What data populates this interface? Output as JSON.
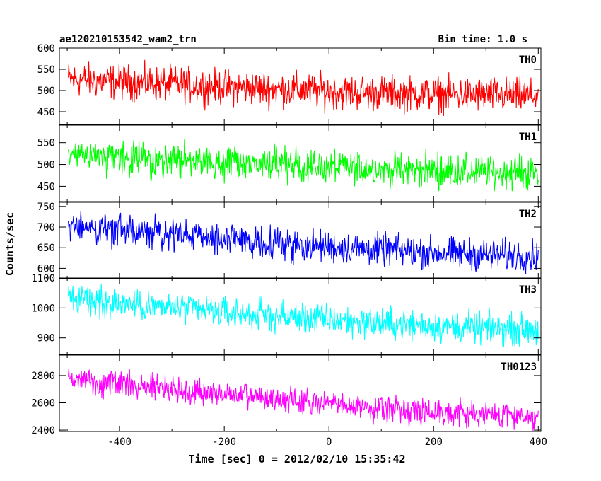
{
  "header": {
    "title": "ae120210153542_wam2_trn",
    "bin_time": "Bin time: 1.0 s"
  },
  "chart_data": {
    "type": "line",
    "title": "ae120210153542_wam2_trn",
    "subtitle": "Bin time: 1.0 s",
    "xlabel": "Time [sec] 0 = 2012/02/10 15:35:42",
    "ylabel": "Counts/sec",
    "xlim": [
      -515,
      405
    ],
    "xticks": [
      -400,
      -200,
      0,
      200,
      400
    ],
    "xtick_labels": [
      "-400",
      "-200",
      "0",
      "200",
      "400"
    ],
    "bin_time_s": 1.0,
    "panels": [
      {
        "name": "TH0",
        "color": "#ff0000",
        "ylim": [
          420,
          600
        ],
        "yticks": [
          450,
          500,
          550,
          600
        ],
        "ytick_labels": [
          "450",
          "500",
          "550",
          "600"
        ],
        "x": [
          -500,
          -400,
          -300,
          -200,
          -100,
          0,
          100,
          200,
          300,
          400
        ],
        "y": [
          527,
          520,
          515,
          508,
          503,
          498,
          494,
          491,
          490,
          487
        ],
        "noise": 30
      },
      {
        "name": "TH1",
        "color": "#00ff00",
        "ylim": [
          415,
          590
        ],
        "yticks": [
          450,
          500,
          550
        ],
        "ytick_labels": [
          "450",
          "500",
          "550"
        ],
        "x": [
          -500,
          -400,
          -300,
          -200,
          -100,
          0,
          100,
          200,
          300,
          400
        ],
        "y": [
          518,
          514,
          509,
          504,
          499,
          494,
          489,
          486,
          482,
          480
        ],
        "noise": 28
      },
      {
        "name": "TH2",
        "color": "#0000ff",
        "ylim": [
          575,
          760
        ],
        "yticks": [
          600,
          650,
          700,
          750
        ],
        "ytick_labels": [
          "600",
          "650",
          "700",
          "750"
        ],
        "x": [
          -500,
          -400,
          -300,
          -200,
          -100,
          0,
          100,
          200,
          300,
          400
        ],
        "y": [
          703,
          692,
          682,
          671,
          661,
          652,
          645,
          638,
          633,
          630
        ],
        "noise": 28
      },
      {
        "name": "TH3",
        "color": "#00ffff",
        "ylim": [
          845,
          1100
        ],
        "yticks": [
          900,
          1000,
          1100
        ],
        "ytick_labels": [
          "900",
          "1000",
          "1100"
        ],
        "x": [
          -500,
          -400,
          -300,
          -200,
          -100,
          0,
          100,
          200,
          300,
          400
        ],
        "y": [
          1030,
          1015,
          1000,
          985,
          972,
          960,
          950,
          940,
          932,
          928
        ],
        "noise": 38
      },
      {
        "name": "TH0123",
        "color": "#ff00ff",
        "ylim": [
          2390,
          2950
        ],
        "yticks": [
          2400,
          2600,
          2800
        ],
        "ytick_labels": [
          "2400",
          "2600",
          "2800"
        ],
        "x": [
          -500,
          -400,
          -300,
          -200,
          -100,
          0,
          100,
          200,
          300,
          400
        ],
        "y": [
          2780,
          2740,
          2700,
          2660,
          2625,
          2590,
          2560,
          2535,
          2515,
          2505
        ],
        "noise": 70
      }
    ]
  }
}
